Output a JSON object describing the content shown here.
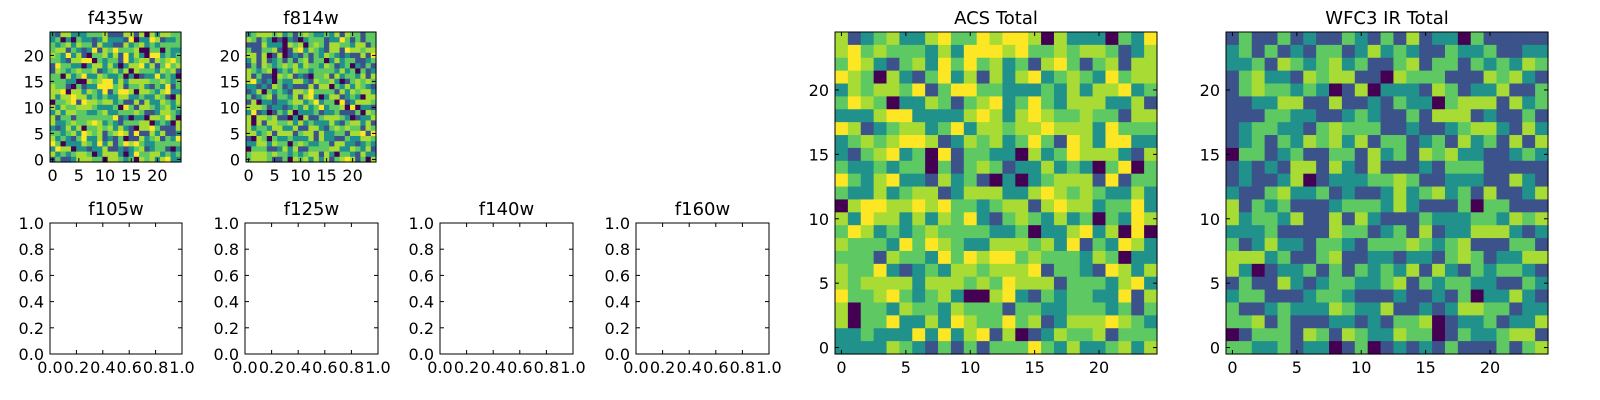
{
  "colors": {
    "viridis": [
      "#440154",
      "#3b528b",
      "#21918c",
      "#5ec962",
      "#a8db34",
      "#fde725"
    ]
  },
  "chart_data": [
    {
      "type": "heatmap",
      "title": "f435w",
      "xlim": [
        -0.5,
        24.5
      ],
      "ylim": [
        -0.5,
        24.5
      ],
      "xticks": [
        "0",
        "5",
        "10",
        "15",
        "20"
      ],
      "yticks": [
        "0",
        "5",
        "10",
        "15",
        "20"
      ],
      "grid": false,
      "cells": 25,
      "seed": 11,
      "dark_fraction": 0.06,
      "mean_level": 0.58
    },
    {
      "type": "heatmap",
      "title": "f814w",
      "xlim": [
        -0.5,
        24.5
      ],
      "ylim": [
        -0.5,
        24.5
      ],
      "xticks": [
        "0",
        "5",
        "10",
        "15",
        "20"
      ],
      "yticks": [
        "0",
        "5",
        "10",
        "15",
        "20"
      ],
      "grid": false,
      "cells": 25,
      "seed": 23,
      "dark_fraction": 0.06,
      "mean_level": 0.56
    },
    {
      "type": "empty",
      "title": "f105w",
      "xlim": [
        0,
        1
      ],
      "ylim": [
        0,
        1
      ],
      "xticks": [
        "0.0",
        "0.2",
        "0.4",
        "0.6",
        "0.8",
        "1.0"
      ],
      "yticks": [
        "0.0",
        "0.2",
        "0.4",
        "0.6",
        "0.8",
        "1.0"
      ]
    },
    {
      "type": "empty",
      "title": "f125w",
      "xlim": [
        0,
        1
      ],
      "ylim": [
        0,
        1
      ],
      "xticks": [
        "0.0",
        "0.2",
        "0.4",
        "0.6",
        "0.8",
        "1.0"
      ],
      "yticks": [
        "0.0",
        "0.2",
        "0.4",
        "0.6",
        "0.8",
        "1.0"
      ]
    },
    {
      "type": "empty",
      "title": "f140w",
      "xlim": [
        0,
        1
      ],
      "ylim": [
        0,
        1
      ],
      "xticks": [
        "0.0",
        "0.2",
        "0.4",
        "0.6",
        "0.8",
        "1.0"
      ],
      "yticks": [
        "0.0",
        "0.2",
        "0.4",
        "0.6",
        "0.8",
        "1.0"
      ]
    },
    {
      "type": "empty",
      "title": "f160w",
      "xlim": [
        0,
        1
      ],
      "ylim": [
        0,
        1
      ],
      "xticks": [
        "0.0",
        "0.2",
        "0.4",
        "0.6",
        "0.8",
        "1.0"
      ],
      "yticks": [
        "0.0",
        "0.2",
        "0.4",
        "0.6",
        "0.8",
        "1.0"
      ]
    },
    {
      "type": "heatmap",
      "title": "ACS Total",
      "xlim": [
        -0.5,
        24.5
      ],
      "ylim": [
        -0.5,
        24.5
      ],
      "xticks": [
        "0",
        "5",
        "10",
        "15",
        "20"
      ],
      "yticks": [
        "0",
        "5",
        "10",
        "15",
        "20"
      ],
      "grid": false,
      "cells": 25,
      "seed": 37,
      "dark_fraction": 0.04,
      "mean_level": 0.62
    },
    {
      "type": "heatmap",
      "title": "WFC3 IR Total",
      "xlim": [
        -0.5,
        24.5
      ],
      "ylim": [
        -0.5,
        24.5
      ],
      "xticks": [
        "0",
        "5",
        "10",
        "15",
        "20"
      ],
      "yticks": [
        "0",
        "5",
        "10",
        "15",
        "20"
      ],
      "grid": false,
      "cells": 25,
      "seed": 53,
      "dark_fraction": 0.03,
      "mean_level": 0.45
    }
  ]
}
